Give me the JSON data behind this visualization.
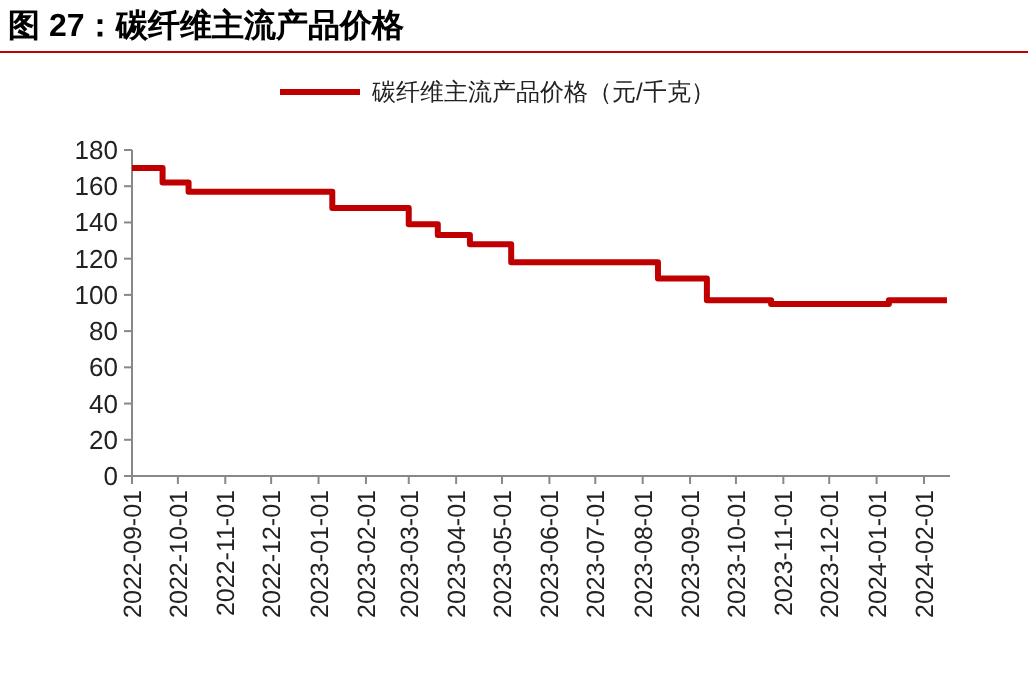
{
  "chart_data": {
    "type": "step",
    "title": "图 27：碳纤维主流产品价格",
    "x": [
      "2022-09-01",
      "2022-09-21",
      "2022-10-08",
      "2023-01-10",
      "2023-03-01",
      "2023-03-20",
      "2023-04-10",
      "2023-05-07",
      "2023-08-11",
      "2023-09-12",
      "2023-10-24",
      "2024-01-09",
      "2024-02-16"
    ],
    "series": [
      {
        "name": "碳纤维主流产品价格（元/千克）",
        "color": "#c00000",
        "values": [
          170,
          162,
          157,
          148,
          139,
          133,
          128,
          118,
          109,
          97,
          95,
          97,
          97
        ]
      }
    ],
    "xlim": [
      "2022-09-01",
      "2024-02-18"
    ],
    "xticks": [
      "2022-09-01",
      "2022-10-01",
      "2022-11-01",
      "2022-12-01",
      "2023-01-01",
      "2023-02-01",
      "2023-03-01",
      "2023-04-01",
      "2023-05-01",
      "2023-06-01",
      "2023-07-01",
      "2023-08-01",
      "2023-09-01",
      "2023-10-01",
      "2023-11-01",
      "2023-12-01",
      "2024-01-01",
      "2024-02-01"
    ],
    "ylim": [
      0,
      180
    ],
    "yticks": [
      0,
      20,
      40,
      60,
      80,
      100,
      120,
      140,
      160,
      180
    ],
    "grid": false,
    "legend": "top",
    "marker": "none",
    "line_style": "solid"
  }
}
